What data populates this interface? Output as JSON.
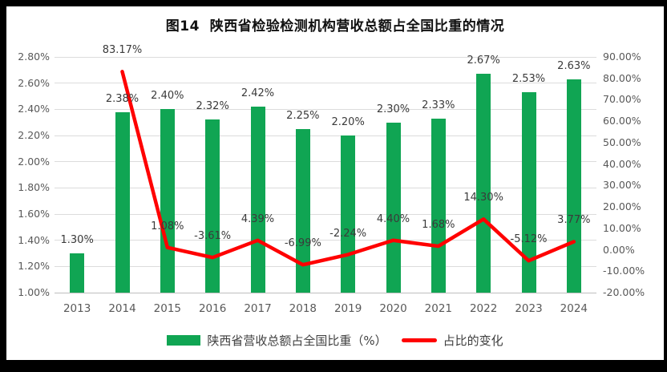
{
  "chart_data": {
    "type": "bar",
    "subtype": "combo-bar-line",
    "title": "图14  陕西省检验检测机构营收总额占全国比重的情况",
    "categories": [
      "2013",
      "2014",
      "2015",
      "2016",
      "2017",
      "2018",
      "2019",
      "2020",
      "2021",
      "2022",
      "2023",
      "2024"
    ],
    "series": [
      {
        "name": "陕西省营收总额占全国比重（%）",
        "kind": "bar",
        "axis": "left",
        "color": "#10A553",
        "values": [
          1.3,
          2.38,
          2.4,
          2.32,
          2.42,
          2.25,
          2.2,
          2.3,
          2.33,
          2.67,
          2.53,
          2.63
        ],
        "labels": [
          "1.30%",
          "2.38%",
          "2.40%",
          "2.32%",
          "2.42%",
          "2.25%",
          "2.20%",
          "2.30%",
          "2.33%",
          "2.67%",
          "2.53%",
          "2.63%"
        ]
      },
      {
        "name": "占比的变化",
        "kind": "line",
        "axis": "right",
        "color": "#FF0000",
        "values": [
          null,
          83.17,
          1.08,
          -3.61,
          4.39,
          -6.99,
          -2.24,
          4.4,
          1.68,
          14.3,
          -5.12,
          3.77
        ],
        "labels": [
          null,
          "83.17%",
          "1.08%",
          "-3.61%",
          "4.39%",
          "-6.99%",
          "-2.24%",
          "4.40%",
          "1.68%",
          "14.30%",
          "-5.12%",
          "3.77%"
        ]
      }
    ],
    "left_axis": {
      "min": 1.0,
      "max": 2.8,
      "tick_values": [
        2.8,
        2.6,
        2.4,
        2.2,
        2.0,
        1.8,
        1.6,
        1.4,
        1.2,
        1.0
      ],
      "tick_labels": [
        "2.80%",
        "2.60%",
        "2.40%",
        "2.20%",
        "2.00%",
        "1.80%",
        "1.60%",
        "1.40%",
        "1.20%",
        "1.00%"
      ]
    },
    "right_axis": {
      "min": -20,
      "max": 90,
      "tick_values": [
        90,
        80,
        70,
        60,
        50,
        40,
        30,
        20,
        10,
        0,
        -10,
        -20
      ],
      "tick_labels": [
        "90.00%",
        "80.00%",
        "70.00%",
        "60.00%",
        "50.00%",
        "40.00%",
        "30.00%",
        "20.00%",
        "10.00%",
        "0.00%",
        "-10.00%",
        "-20.00%"
      ]
    },
    "grid": true,
    "legend_position": "bottom",
    "colors": {
      "gridline": "#DCDCDC",
      "axis_line": "#BFBFBF",
      "axis_text": "#595959",
      "label_text": "#3A3A3A",
      "background": "#FFFFFF",
      "border": "#000000"
    }
  }
}
